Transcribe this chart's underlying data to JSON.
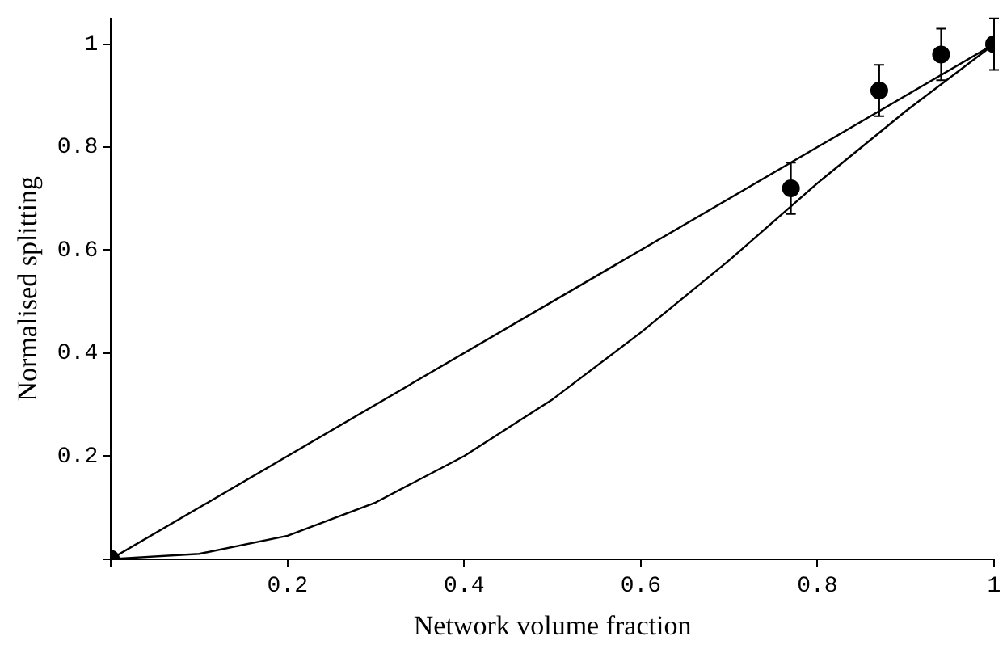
{
  "chart_data": {
    "type": "scatter",
    "xlabel": "Network volume fraction",
    "ylabel": "Normalised splitting",
    "xlim": [
      0,
      1
    ],
    "ylim": [
      0,
      1.05
    ],
    "xticks": [
      {
        "value": 0,
        "label": null
      },
      0.2,
      0.4,
      0.6,
      0.8,
      1
    ],
    "yticks": [
      {
        "value": 0,
        "label": null
      },
      0.2,
      0.4,
      0.6,
      0.8,
      1
    ],
    "grid": false,
    "legend": false,
    "series": [
      {
        "color": "#000000",
        "marker": "circle",
        "x": [
          0,
          0.77,
          0.87,
          0.94,
          1
        ],
        "values": [
          0,
          0.72,
          0.91,
          0.98,
          1
        ],
        "errors": [
          null,
          0.05,
          0.05,
          0.05,
          0.05
        ]
      },
      {
        "type": "line",
        "color": "#000000",
        "marker": "none",
        "line_style": "solid",
        "x": [
          0,
          1
        ],
        "values": [
          0,
          1
        ]
      },
      {
        "type": "line",
        "color": "#000000",
        "marker": "none",
        "line_style": "solid",
        "x": [
          0,
          0.1,
          0.2,
          0.3,
          0.4,
          0.5,
          0.6,
          0.7,
          0.8,
          0.9,
          1
        ],
        "values": [
          0,
          0.01,
          0.045,
          0.11,
          0.2,
          0.31,
          0.44,
          0.58,
          0.73,
          0.87,
          1
        ]
      }
    ]
  }
}
